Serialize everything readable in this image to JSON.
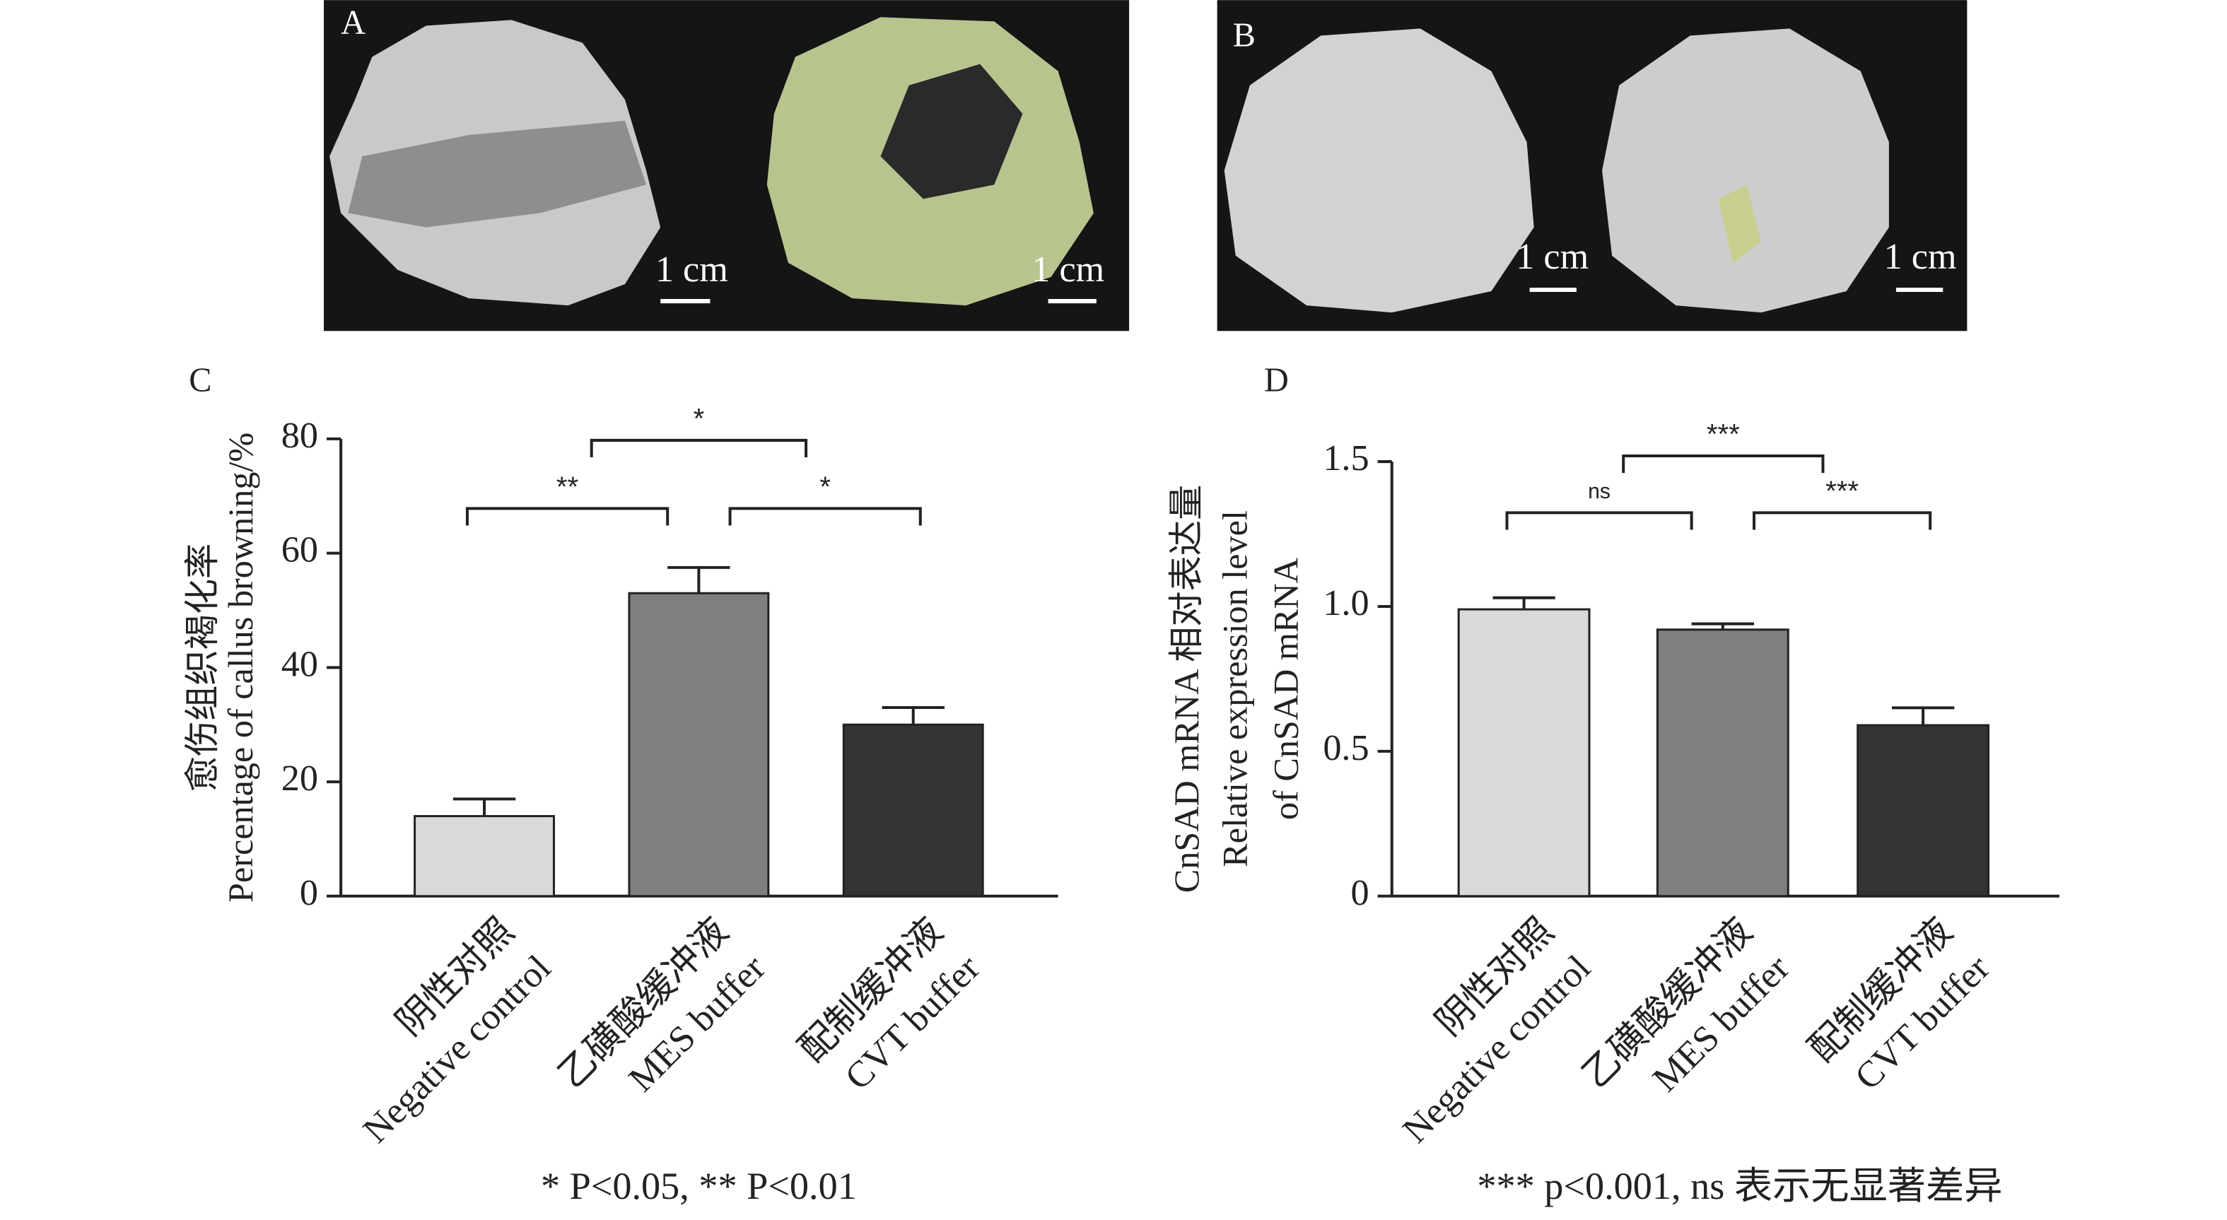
{
  "photos": [
    {
      "panel": "A",
      "scale_labels": [
        "1 cm",
        "1 cm"
      ]
    },
    {
      "panel": "B",
      "scale_labels": [
        "1 cm",
        "1 cm"
      ]
    }
  ],
  "chart_data": [
    {
      "type": "bar",
      "panel": "C",
      "y_label": [
        "愈伤组织褐化率",
        "Percentage of callus browning/%"
      ],
      "categories": [
        [
          "阴性对照",
          "Negative control"
        ],
        [
          "乙磺酸缓冲液",
          "MES buffer"
        ],
        [
          "配制缓冲液",
          "CVT buffer"
        ]
      ],
      "values": [
        14,
        53,
        30
      ],
      "errors": [
        3,
        4.5,
        3
      ],
      "colors": [
        "#d9d9d9",
        "#7f7f7f",
        "#333333"
      ],
      "ylim": [
        0,
        80
      ],
      "yticks": [
        0,
        20,
        40,
        60,
        80
      ],
      "annotations": [
        {
          "label": "**",
          "between": [
            0,
            1
          ]
        },
        {
          "label": "*",
          "between": [
            1,
            2
          ]
        },
        {
          "label": "*",
          "between": [
            0,
            2
          ]
        }
      ],
      "footnote": "* P<0.05, ** P<0.01"
    },
    {
      "type": "bar",
      "panel": "D",
      "y_label": [
        "CnSAD mRNA 相对表达量",
        "Relative expression level",
        "of CnSAD mRNA"
      ],
      "categories": [
        [
          "阴性对照",
          "Negative control"
        ],
        [
          "乙磺酸缓冲液",
          "MES buffer"
        ],
        [
          "配制缓冲液",
          "CVT buffer"
        ]
      ],
      "values": [
        0.99,
        0.92,
        0.59
      ],
      "errors": [
        0.04,
        0.02,
        0.06
      ],
      "colors": [
        "#d9d9d9",
        "#7f7f7f",
        "#333333"
      ],
      "ylim": [
        0,
        1.5
      ],
      "yticks": [
        0,
        0.5,
        {
          "value": 1,
          "label": "1.0"
        },
        1.5
      ],
      "annotations": [
        {
          "label": "ns",
          "between": [
            0,
            1
          ]
        },
        {
          "label": "***",
          "between": [
            1,
            2
          ]
        },
        {
          "label": "***",
          "between": [
            0,
            2
          ]
        }
      ],
      "footnote": "*** p<0.001, ns 表示无显著差异"
    }
  ]
}
